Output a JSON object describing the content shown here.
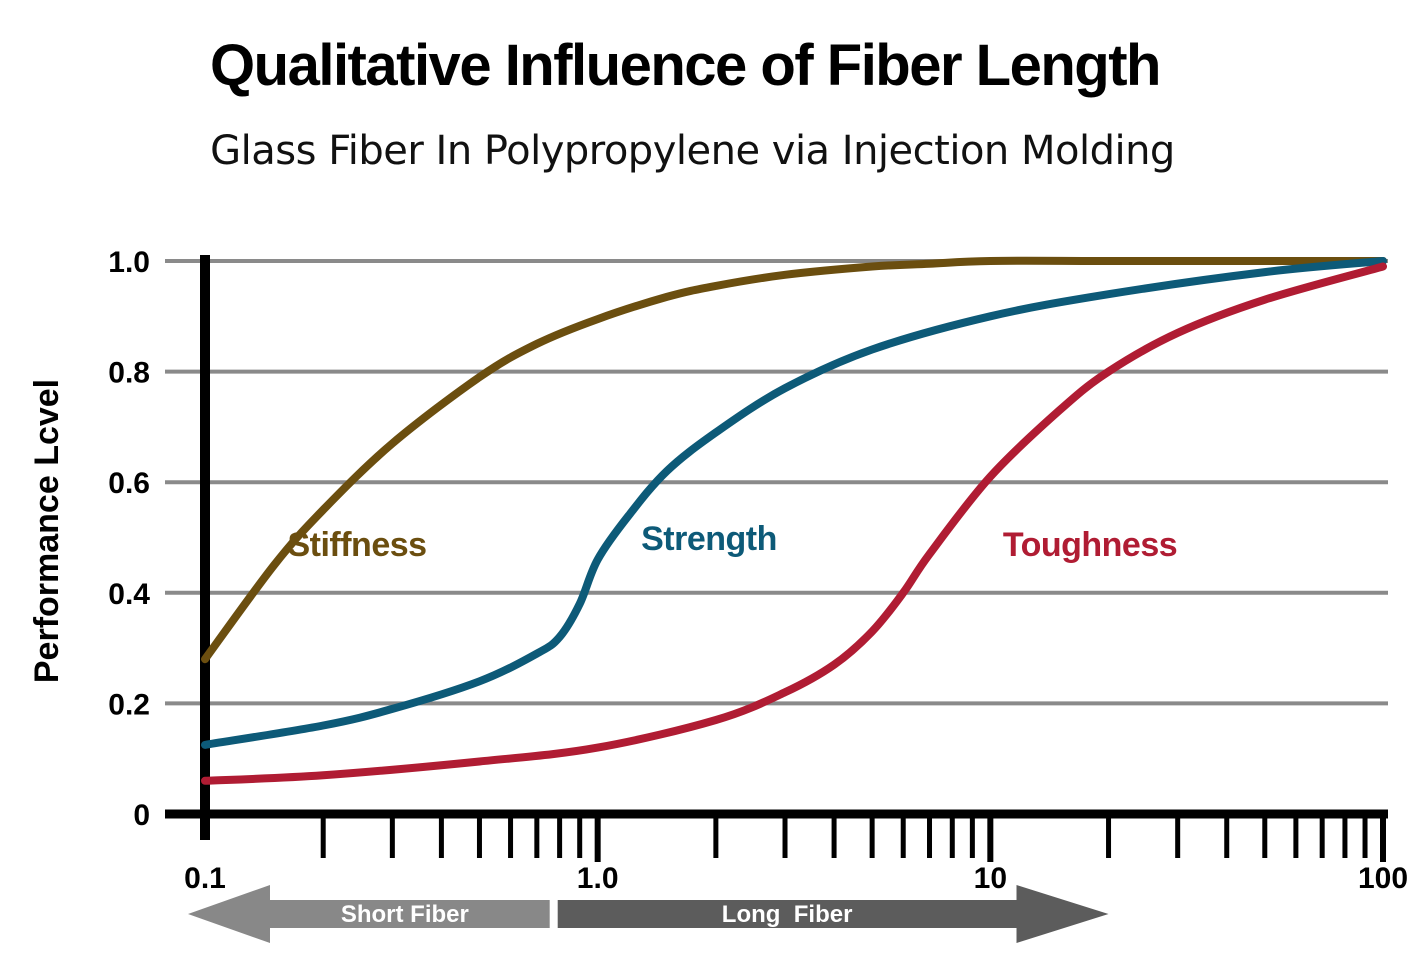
{
  "title": "Qualitative Influence of Fiber Length",
  "subtitle": "Glass Fiber In Polypropylene via Injection Molding",
  "chart_data": {
    "type": "line",
    "title": "Qualitative Influence of Fiber Length",
    "subtitle": "Glass Fiber In Polypropylene via Injection Molding",
    "xlabel": "",
    "ylabel": "Performance Lcvel",
    "x_scale": "log",
    "xlim": [
      0.1,
      100
    ],
    "ylim": [
      0,
      1.0
    ],
    "x_ticks": [
      "0.1",
      "1.0",
      "10",
      "100"
    ],
    "y_ticks": [
      "0",
      "0.2",
      "0.4",
      "0.6",
      "0.8",
      "1.0"
    ],
    "grid": "horizontal",
    "series": [
      {
        "name": "Stiffness",
        "color": "#6b4e0f",
        "x": [
          0.1,
          0.15,
          0.2,
          0.3,
          0.5,
          0.7,
          1.0,
          1.5,
          2.0,
          3.0,
          5.0,
          7.0,
          10,
          20,
          50,
          100
        ],
        "y": [
          0.28,
          0.45,
          0.55,
          0.67,
          0.79,
          0.85,
          0.895,
          0.935,
          0.955,
          0.975,
          0.99,
          0.995,
          1.0,
          1.0,
          1.0,
          1.0
        ]
      },
      {
        "name": "Strength",
        "color": "#0d5a78",
        "x": [
          0.1,
          0.2,
          0.3,
          0.5,
          0.7,
          0.8,
          0.9,
          1.0,
          1.2,
          1.5,
          2.0,
          3.0,
          5.0,
          10,
          20,
          50,
          100
        ],
        "y": [
          0.125,
          0.16,
          0.19,
          0.24,
          0.29,
          0.32,
          0.38,
          0.46,
          0.54,
          0.62,
          0.69,
          0.77,
          0.84,
          0.9,
          0.94,
          0.98,
          1.0
        ]
      },
      {
        "name": "Toughness",
        "color": "#b01c33",
        "x": [
          0.1,
          0.2,
          0.5,
          1.0,
          2.0,
          3.0,
          4.0,
          5.0,
          6.0,
          7.0,
          10,
          15,
          20,
          30,
          50,
          100
        ],
        "y": [
          0.06,
          0.07,
          0.095,
          0.12,
          0.17,
          0.22,
          0.27,
          0.33,
          0.4,
          0.47,
          0.61,
          0.73,
          0.8,
          0.87,
          0.93,
          0.99
        ]
      }
    ],
    "annotations": [
      {
        "text": "Stiffness",
        "series": "Stiffness"
      },
      {
        "text": "Strength",
        "series": "Strength"
      },
      {
        "text": "Toughness",
        "series": "Toughness"
      }
    ],
    "range_arrows": [
      {
        "text": "Short Fiber",
        "from": 0.1,
        "to": 0.9,
        "direction": "left",
        "color": "#888888"
      },
      {
        "text": "Long  Fiber",
        "from": 0.9,
        "to": 20,
        "direction": "right",
        "color": "#5c5c5c"
      }
    ],
    "grid_color": "#8a8a8a"
  }
}
